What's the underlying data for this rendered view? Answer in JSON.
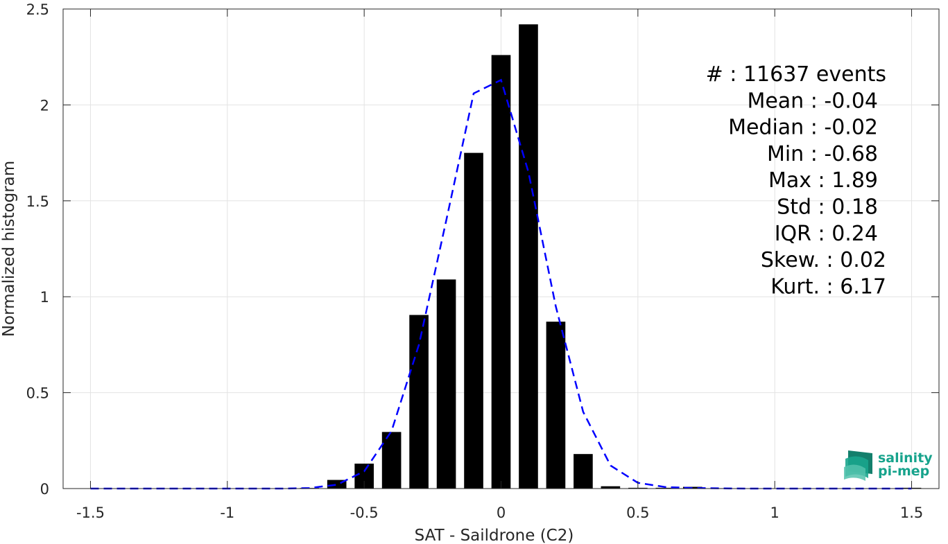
{
  "chart_data": {
    "type": "bar",
    "xlabel": "SAT - Saildrone (C2)",
    "ylabel": "Normalized histogram",
    "xlim": [
      -1.6,
      1.6
    ],
    "ylim": [
      0,
      2.5
    ],
    "grid": true,
    "x_ticks": [
      "-1.5",
      "-1",
      "-0.5",
      "0",
      "0.5",
      "1",
      "1.5"
    ],
    "x_tick_values": [
      -1.5,
      -1,
      -0.5,
      0,
      0.5,
      1,
      1.5
    ],
    "y_ticks": [
      "0",
      "0.5",
      "1",
      "1.5",
      "2",
      "2.5"
    ],
    "y_tick_values": [
      0,
      0.5,
      1,
      1.5,
      2,
      2.5
    ],
    "bar_color": "#000000",
    "bar_width": 0.07,
    "bars": {
      "x": [
        -1.5,
        -1.4,
        -1.3,
        -1.2,
        -1.1,
        -1.0,
        -0.9,
        -0.8,
        -0.7,
        -0.6,
        -0.5,
        -0.4,
        -0.3,
        -0.2,
        -0.1,
        0.0,
        0.1,
        0.2,
        0.3,
        0.4,
        0.5,
        0.6,
        0.7,
        0.8,
        0.9,
        1.0,
        1.1,
        1.2,
        1.3,
        1.4,
        1.5
      ],
      "values": [
        0,
        0,
        0,
        0,
        0,
        0,
        0,
        0,
        0.003,
        0.045,
        0.13,
        0.295,
        0.905,
        1.09,
        1.75,
        2.26,
        2.42,
        0.87,
        0.18,
        0.012,
        0.004,
        0.004,
        0.009,
        0.002,
        0.001,
        0.001,
        0.001,
        0.001,
        0.001,
        0.001,
        0.004
      ]
    },
    "fit_line": {
      "style": "dashed",
      "color": "#0000ff",
      "x": [
        -1.5,
        -1.4,
        -1.3,
        -1.2,
        -1.1,
        -1.0,
        -0.9,
        -0.8,
        -0.7,
        -0.6,
        -0.5,
        -0.4,
        -0.3,
        -0.2,
        -0.1,
        0.0,
        0.1,
        0.2,
        0.3,
        0.4,
        0.5,
        0.6,
        0.7,
        0.8,
        0.9,
        1.0,
        1.1,
        1.2,
        1.3,
        1.4,
        1.5
      ],
      "values": [
        0,
        0,
        0,
        0,
        0,
        0,
        0,
        0,
        0.003,
        0.02,
        0.09,
        0.3,
        0.75,
        1.4,
        2.06,
        2.13,
        1.65,
        0.95,
        0.4,
        0.12,
        0.03,
        0.008,
        0.003,
        0.001,
        0,
        0,
        0,
        0,
        0,
        0,
        0
      ]
    },
    "stats": [
      "#  : 11637 events",
      "Mean : -0.04",
      "Median : -0.02",
      "Min : -0.68",
      "Max : 1.89",
      "Std : 0.18",
      "IQR : 0.24",
      "Skew. : 0.02",
      "Kurt. : 6.17"
    ]
  },
  "logo": {
    "line1": "salinity",
    "line2": "pi-mep",
    "color": "#17a38c"
  }
}
